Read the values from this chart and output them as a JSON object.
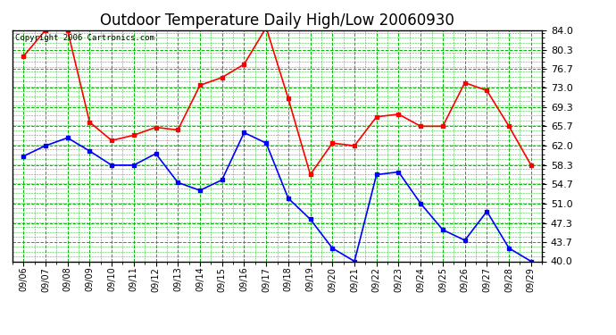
{
  "title": "Outdoor Temperature Daily High/Low 20060930",
  "copyright_text": "Copyright 2006 Cartronics.com",
  "dates": [
    "09/06",
    "09/07",
    "09/08",
    "09/09",
    "09/10",
    "09/11",
    "09/12",
    "09/13",
    "09/14",
    "09/15",
    "09/16",
    "09/17",
    "09/18",
    "09/19",
    "09/20",
    "09/21",
    "09/22",
    "09/23",
    "09/24",
    "09/25",
    "09/26",
    "09/27",
    "09/28",
    "09/29"
  ],
  "high_temps": [
    79.0,
    84.0,
    84.0,
    66.5,
    63.0,
    64.0,
    65.5,
    65.0,
    73.5,
    75.0,
    77.5,
    84.5,
    71.0,
    56.5,
    62.5,
    62.0,
    67.5,
    68.0,
    65.7,
    65.7,
    74.0,
    72.5,
    65.7,
    58.3
  ],
  "low_temps": [
    60.0,
    62.0,
    63.5,
    61.0,
    58.3,
    58.3,
    60.5,
    55.0,
    53.5,
    55.5,
    64.5,
    62.5,
    52.0,
    48.0,
    42.5,
    40.0,
    56.5,
    57.0,
    51.0,
    46.0,
    44.0,
    49.5,
    42.5,
    40.0
  ],
  "ylim": [
    40.0,
    84.0
  ],
  "yticks": [
    40.0,
    43.7,
    47.3,
    51.0,
    54.7,
    58.3,
    62.0,
    65.7,
    69.3,
    73.0,
    76.7,
    80.3,
    84.0
  ],
  "high_color": "red",
  "low_color": "blue",
  "bg_color": "white",
  "grid_color": "#00bb00",
  "title_fontsize": 12,
  "figsize": [
    6.9,
    3.75
  ],
  "dpi": 100
}
